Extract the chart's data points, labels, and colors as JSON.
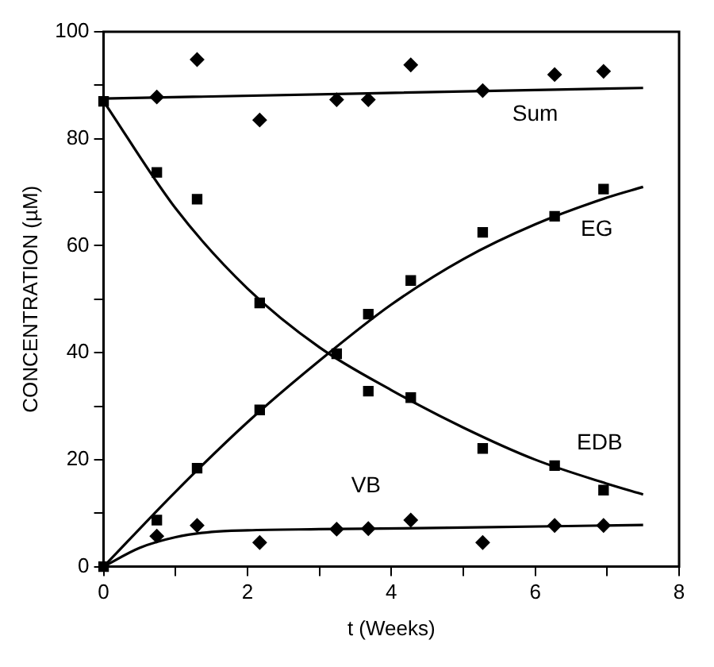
{
  "chart_data": {
    "type": "scatter",
    "xlabel": "t (Weeks)",
    "ylabel": "CONCENTRATION (µM)",
    "xlim": [
      0,
      8
    ],
    "ylim": [
      0,
      100
    ],
    "xticks": [
      0,
      {
        "value": 1,
        "label": null
      },
      2,
      {
        "value": 3,
        "label": null
      },
      4,
      {
        "value": 5,
        "label": null
      },
      6,
      {
        "value": 7,
        "label": null
      },
      8
    ],
    "yticks": [
      0,
      {
        "value": 10,
        "label": null
      },
      20,
      {
        "value": 30,
        "label": null
      },
      40,
      {
        "value": 50,
        "label": null
      },
      60,
      {
        "value": 70,
        "label": null
      },
      80,
      {
        "value": 90,
        "label": null
      },
      100
    ],
    "grid": false,
    "legend": false,
    "series": [
      {
        "type": "scatter",
        "marker": "diamond",
        "color": "#000000",
        "x": [
          0.74,
          1.3,
          2.17,
          3.24,
          3.68,
          4.27,
          5.27,
          6.27,
          6.95
        ],
        "values": [
          87.8,
          94.8,
          83.5,
          87.3,
          87.3,
          93.8,
          89,
          92,
          92.6
        ]
      },
      {
        "type": "scatter",
        "marker": "square",
        "color": "#000000",
        "x": [
          0,
          0.74,
          1.3,
          2.17,
          3.24,
          3.68,
          4.27,
          5.27,
          6.27,
          6.95
        ],
        "values": [
          87,
          73.7,
          68.7,
          49.3,
          39.8,
          32.8,
          31.6,
          22.1,
          18.9,
          14.3
        ]
      },
      {
        "type": "scatter",
        "marker": "square",
        "color": "#000000",
        "x": [
          0,
          0.74,
          1.3,
          2.17,
          3.68,
          4.27,
          5.27,
          6.27,
          6.95
        ],
        "values": [
          0,
          8.7,
          18.4,
          29.3,
          47.2,
          53.5,
          62.5,
          65.5,
          70.6
        ]
      },
      {
        "type": "scatter",
        "marker": "diamond",
        "color": "#000000",
        "x": [
          0.74,
          1.3,
          2.17,
          3.24,
          3.68,
          4.27,
          5.27,
          6.27,
          6.95
        ],
        "values": [
          5.7,
          7.7,
          4.5,
          7,
          7.1,
          8.7,
          4.5,
          7.7,
          7.7
        ]
      },
      {
        "type": "line",
        "marker": "none",
        "color": "#000000",
        "x": [
          0,
          7.5
        ],
        "values": [
          87.5,
          89.5
        ]
      },
      {
        "type": "line",
        "marker": "none",
        "color": "#000000",
        "x": [
          0,
          1,
          2,
          3,
          4,
          5,
          6,
          7,
          7.5
        ],
        "values": [
          87,
          67,
          52,
          41,
          33,
          26,
          20,
          15.5,
          13.5
        ]
      },
      {
        "type": "line",
        "marker": "none",
        "color": "#000000",
        "x": [
          0,
          1,
          2,
          3,
          4,
          5,
          6,
          7,
          7.5
        ],
        "values": [
          0,
          14,
          27,
          38.5,
          49,
          57.5,
          64,
          69,
          71
        ]
      },
      {
        "type": "line",
        "marker": "none",
        "color": "#000000",
        "x": [
          0,
          0.5,
          1,
          1.5,
          2,
          3,
          5,
          7.5
        ],
        "values": [
          0,
          3.5,
          5.5,
          6.5,
          6.8,
          7,
          7.3,
          7.8
        ]
      }
    ],
    "annotations": [
      "Sum",
      "EG",
      "EDB",
      "VB"
    ]
  }
}
